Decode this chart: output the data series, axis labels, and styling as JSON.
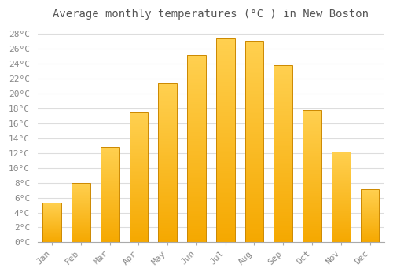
{
  "title": "Average monthly temperatures (°C ) in New Boston",
  "months": [
    "Jan",
    "Feb",
    "Mar",
    "Apr",
    "May",
    "Jun",
    "Jul",
    "Aug",
    "Sep",
    "Oct",
    "Nov",
    "Dec"
  ],
  "temperatures": [
    5.3,
    8.0,
    12.8,
    17.4,
    21.3,
    25.1,
    27.3,
    27.0,
    23.8,
    17.8,
    12.2,
    7.1
  ],
  "bar_color_bottom": "#F5A800",
  "bar_color_top": "#FFD050",
  "bar_edge_color": "#CC8800",
  "ylim": [
    0,
    29
  ],
  "yticks": [
    0,
    2,
    4,
    6,
    8,
    10,
    12,
    14,
    16,
    18,
    20,
    22,
    24,
    26,
    28
  ],
  "ytick_labels": [
    "0°C",
    "2°C",
    "4°C",
    "6°C",
    "8°C",
    "10°C",
    "12°C",
    "14°C",
    "16°C",
    "18°C",
    "20°C",
    "22°C",
    "24°C",
    "26°C",
    "28°C"
  ],
  "background_color": "#ffffff",
  "grid_color": "#dddddd",
  "title_fontsize": 10,
  "tick_fontsize": 8
}
